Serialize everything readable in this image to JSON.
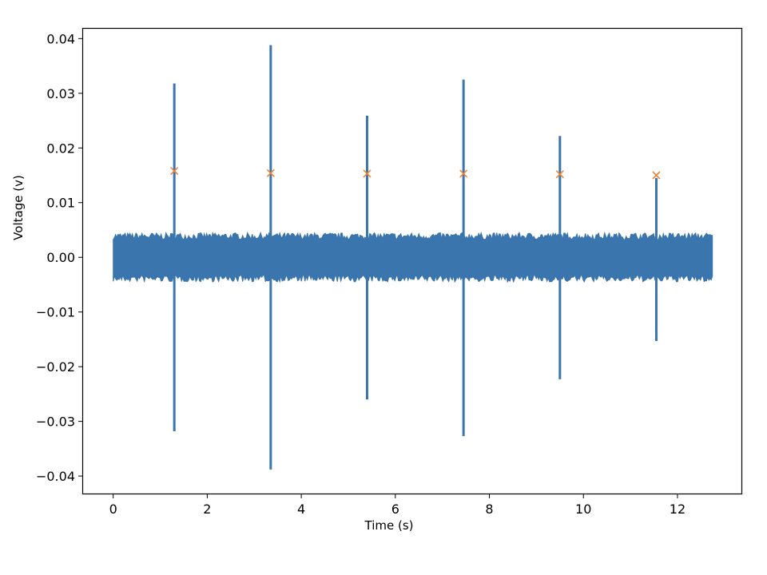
{
  "chart_data": {
    "type": "line",
    "title": "",
    "xlabel": "Time (s)",
    "ylabel": "Voltage (v)",
    "xlim": [
      -0.64,
      13.36
    ],
    "ylim": [
      -0.0432,
      0.0418
    ],
    "xticks": [
      0,
      2,
      4,
      6,
      8,
      10,
      12
    ],
    "xtick_labels": [
      "0",
      "2",
      "4",
      "6",
      "8",
      "10",
      "12"
    ],
    "yticks": [
      0.04,
      0.03,
      0.02,
      0.01,
      0.0,
      -0.01,
      -0.02,
      -0.03,
      -0.04
    ],
    "ytick_labels": [
      "0.04",
      "0.03",
      "0.02",
      "0.01",
      "0.00",
      "−0.01",
      "−0.02",
      "−0.03",
      "−0.04"
    ],
    "grid": false,
    "series": [
      {
        "kind": "signal",
        "color": "#3a75ae",
        "x_range": [
          0,
          12.75
        ],
        "noise_amplitude": 0.0045,
        "spikes": [
          {
            "x": 1.3,
            "max": 0.0318,
            "min": -0.0318
          },
          {
            "x": 3.35,
            "max": 0.0388,
            "min": -0.0388
          },
          {
            "x": 5.4,
            "max": 0.0259,
            "min": -0.026
          },
          {
            "x": 7.45,
            "max": 0.0325,
            "min": -0.0327
          },
          {
            "x": 9.5,
            "max": 0.0222,
            "min": -0.0223
          },
          {
            "x": 11.55,
            "max": 0.0145,
            "min": -0.0153
          }
        ]
      },
      {
        "kind": "markers",
        "marker": "x",
        "color": "#ed8536",
        "x": [
          1.3,
          3.35,
          5.4,
          7.45,
          9.5,
          11.55
        ],
        "y": [
          0.0158,
          0.0154,
          0.0153,
          0.0153,
          0.0152,
          0.015
        ]
      }
    ]
  }
}
